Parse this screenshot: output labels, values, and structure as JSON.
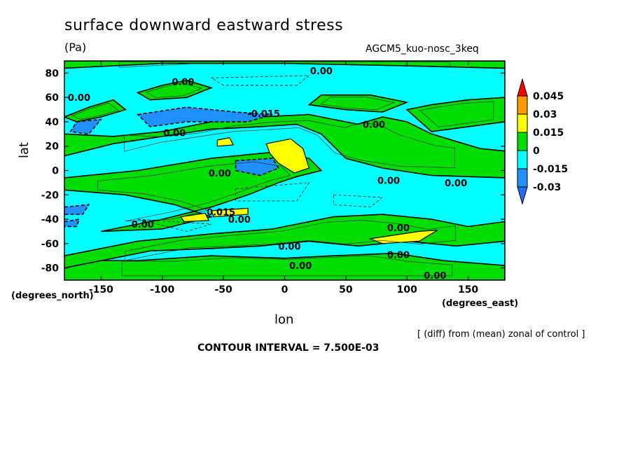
{
  "chart_data": {
    "type": "heatmap",
    "title": "surface downward eastward stress",
    "units": "(Pa)",
    "model": "AGCM5_kuo-nosc_3keq",
    "xlabel": "lon",
    "xlabel_unit": "(degrees_east)",
    "ylabel": "lat",
    "ylabel_unit": "(degrees_north)",
    "xlim": [
      -180,
      180
    ],
    "ylim": [
      -90,
      90
    ],
    "xticks": [
      "-150",
      "-100",
      "-50",
      "0",
      "50",
      "100",
      "150"
    ],
    "xtick_values": [
      -150,
      -100,
      -50,
      0,
      50,
      100,
      150
    ],
    "yticks": [
      "80",
      "60",
      "40",
      "20",
      "0",
      "-20",
      "-40",
      "-60",
      "-80"
    ],
    "ytick_values": [
      80,
      60,
      40,
      20,
      0,
      -20,
      -40,
      -60,
      -80
    ],
    "note": "[ (diff) from (mean) zonal of control ]",
    "contour_interval": "CONTOUR INTERVAL = 7.500E-03",
    "colorbar": {
      "labels": [
        "0.045",
        "0.03",
        "0.015",
        "0",
        "-0.015",
        "-0.03"
      ],
      "colors": [
        "#ff0000",
        "#ff9900",
        "#ffff00",
        "#00dd00",
        "#00ffff",
        "#1e90ff",
        "#1e6fff"
      ]
    },
    "contour_labels": [
      {
        "text": "0.00",
        "lon": 30,
        "lat": 82
      },
      {
        "text": "0.00",
        "lon": -83,
        "lat": 73
      },
      {
        "text": "0.00",
        "lon": -168,
        "lat": 60
      },
      {
        "text": "-0.015",
        "lon": -17,
        "lat": 47
      },
      {
        "text": "0.00",
        "lon": -90,
        "lat": 31
      },
      {
        "text": "0.00",
        "lon": 73,
        "lat": 38
      },
      {
        "text": "0.00",
        "lon": -53,
        "lat": -2
      },
      {
        "text": "0.00",
        "lon": 85,
        "lat": -8
      },
      {
        "text": "0.00",
        "lon": 140,
        "lat": -10
      },
      {
        "text": "0.015",
        "lon": -52,
        "lat": -34
      },
      {
        "text": "0.00",
        "lon": -37,
        "lat": -40
      },
      {
        "text": "0.00",
        "lon": -116,
        "lat": -44
      },
      {
        "text": "0.00",
        "lon": 93,
        "lat": -47
      },
      {
        "text": "0.00",
        "lon": 4,
        "lat": -62
      },
      {
        "text": "0.00",
        "lon": 93,
        "lat": -69
      },
      {
        "text": "0.00",
        "lon": 13,
        "lat": -78
      },
      {
        "text": "0.00",
        "lon": 123,
        "lat": -86
      }
    ],
    "regions": {
      "background_level": "-0.015 to 0",
      "green": [
        [
          [
            -180,
            -90
          ],
          [
            180,
            -90
          ],
          [
            180,
            -78
          ],
          [
            130,
            -74
          ],
          [
            90,
            -68
          ],
          [
            40,
            -70
          ],
          [
            0,
            -72
          ],
          [
            -60,
            -70
          ],
          [
            -120,
            -74
          ],
          [
            -180,
            -74
          ]
        ],
        [
          [
            -180,
            -70
          ],
          [
            -120,
            -58
          ],
          [
            -60,
            -52
          ],
          [
            -10,
            -48
          ],
          [
            40,
            -38
          ],
          [
            80,
            -36
          ],
          [
            120,
            -40
          ],
          [
            150,
            -46
          ],
          [
            180,
            -42
          ],
          [
            180,
            -58
          ],
          [
            140,
            -62
          ],
          [
            100,
            -58
          ],
          [
            60,
            -62
          ],
          [
            20,
            -58
          ],
          [
            -20,
            -62
          ],
          [
            -60,
            -64
          ],
          [
            -110,
            -66
          ],
          [
            -180,
            -80
          ]
        ],
        [
          [
            -150,
            -50
          ],
          [
            -100,
            -40
          ],
          [
            -60,
            -30
          ],
          [
            -30,
            -20
          ],
          [
            -5,
            -10
          ],
          [
            10,
            -5
          ],
          [
            30,
            0
          ],
          [
            20,
            10
          ],
          [
            -10,
            15
          ],
          [
            -60,
            10
          ],
          [
            -120,
            0
          ],
          [
            -180,
            -6
          ],
          [
            -180,
            -16
          ],
          [
            -130,
            -20
          ],
          [
            -90,
            -28
          ],
          [
            -60,
            -38
          ],
          [
            -100,
            -48
          ]
        ],
        [
          [
            -180,
            12
          ],
          [
            -140,
            22
          ],
          [
            -100,
            28
          ],
          [
            -60,
            34
          ],
          [
            -20,
            36
          ],
          [
            10,
            38
          ],
          [
            30,
            30
          ],
          [
            40,
            20
          ],
          [
            50,
            10
          ],
          [
            80,
            2
          ],
          [
            120,
            -4
          ],
          [
            180,
            -6
          ],
          [
            180,
            16
          ],
          [
            160,
            18
          ],
          [
            140,
            24
          ],
          [
            120,
            30
          ],
          [
            100,
            40
          ],
          [
            80,
            44
          ],
          [
            60,
            38
          ],
          [
            40,
            42
          ],
          [
            20,
            46
          ],
          [
            -20,
            44
          ],
          [
            -60,
            40
          ],
          [
            -100,
            32
          ],
          [
            -140,
            28
          ],
          [
            -180,
            30
          ]
        ],
        [
          [
            120,
            32
          ],
          [
            150,
            36
          ],
          [
            180,
            40
          ],
          [
            180,
            60
          ],
          [
            150,
            58
          ],
          [
            120,
            54
          ],
          [
            100,
            50
          ]
        ],
        [
          [
            -180,
            44
          ],
          [
            -160,
            52
          ],
          [
            -140,
            58
          ],
          [
            -130,
            50
          ],
          [
            -150,
            44
          ],
          [
            -170,
            40
          ]
        ],
        [
          [
            -120,
            64
          ],
          [
            -100,
            70
          ],
          [
            -80,
            74
          ],
          [
            -60,
            68
          ],
          [
            -80,
            60
          ],
          [
            -110,
            58
          ]
        ],
        [
          [
            -180,
            84
          ],
          [
            -100,
            88
          ],
          [
            0,
            88
          ],
          [
            100,
            86
          ],
          [
            180,
            84
          ],
          [
            180,
            90
          ],
          [
            -180,
            90
          ]
        ],
        [
          [
            30,
            62
          ],
          [
            70,
            62
          ],
          [
            100,
            56
          ],
          [
            80,
            48
          ],
          [
            50,
            50
          ],
          [
            20,
            54
          ]
        ]
      ],
      "yellow": [
        [
          [
            -55,
            25
          ],
          [
            -45,
            27
          ],
          [
            -42,
            21
          ],
          [
            -55,
            20
          ]
        ],
        [
          [
            -15,
            22
          ],
          [
            5,
            26
          ],
          [
            15,
            18
          ],
          [
            20,
            2
          ],
          [
            8,
            -2
          ],
          [
            -5,
            6
          ],
          [
            -12,
            14
          ]
        ],
        [
          [
            -85,
            -38
          ],
          [
            -65,
            -35
          ],
          [
            -62,
            -41
          ],
          [
            -82,
            -42
          ]
        ],
        [
          [
            -60,
            -33
          ],
          [
            -30,
            -31
          ],
          [
            -30,
            -36
          ],
          [
            -58,
            -38
          ]
        ],
        [
          [
            70,
            -56
          ],
          [
            110,
            -50
          ],
          [
            125,
            -49
          ],
          [
            110,
            -58
          ],
          [
            80,
            -60
          ]
        ]
      ],
      "blue": [
        [
          [
            -170,
            40
          ],
          [
            -150,
            42
          ],
          [
            -160,
            30
          ],
          [
            -175,
            32
          ]
        ],
        [
          [
            -120,
            46
          ],
          [
            -80,
            52
          ],
          [
            -40,
            48
          ],
          [
            -10,
            46
          ],
          [
            -30,
            40
          ],
          [
            -80,
            40
          ],
          [
            -110,
            36
          ]
        ],
        [
          [
            -40,
            8
          ],
          [
            -10,
            10
          ],
          [
            -5,
            2
          ],
          [
            -20,
            -4
          ],
          [
            -40,
            0
          ]
        ],
        [
          [
            -180,
            -30
          ],
          [
            -160,
            -28
          ],
          [
            -165,
            -36
          ],
          [
            -180,
            -36
          ]
        ],
        [
          [
            -180,
            -42
          ],
          [
            -168,
            -40
          ],
          [
            -170,
            -46
          ],
          [
            -180,
            -46
          ]
        ]
      ]
    }
  }
}
